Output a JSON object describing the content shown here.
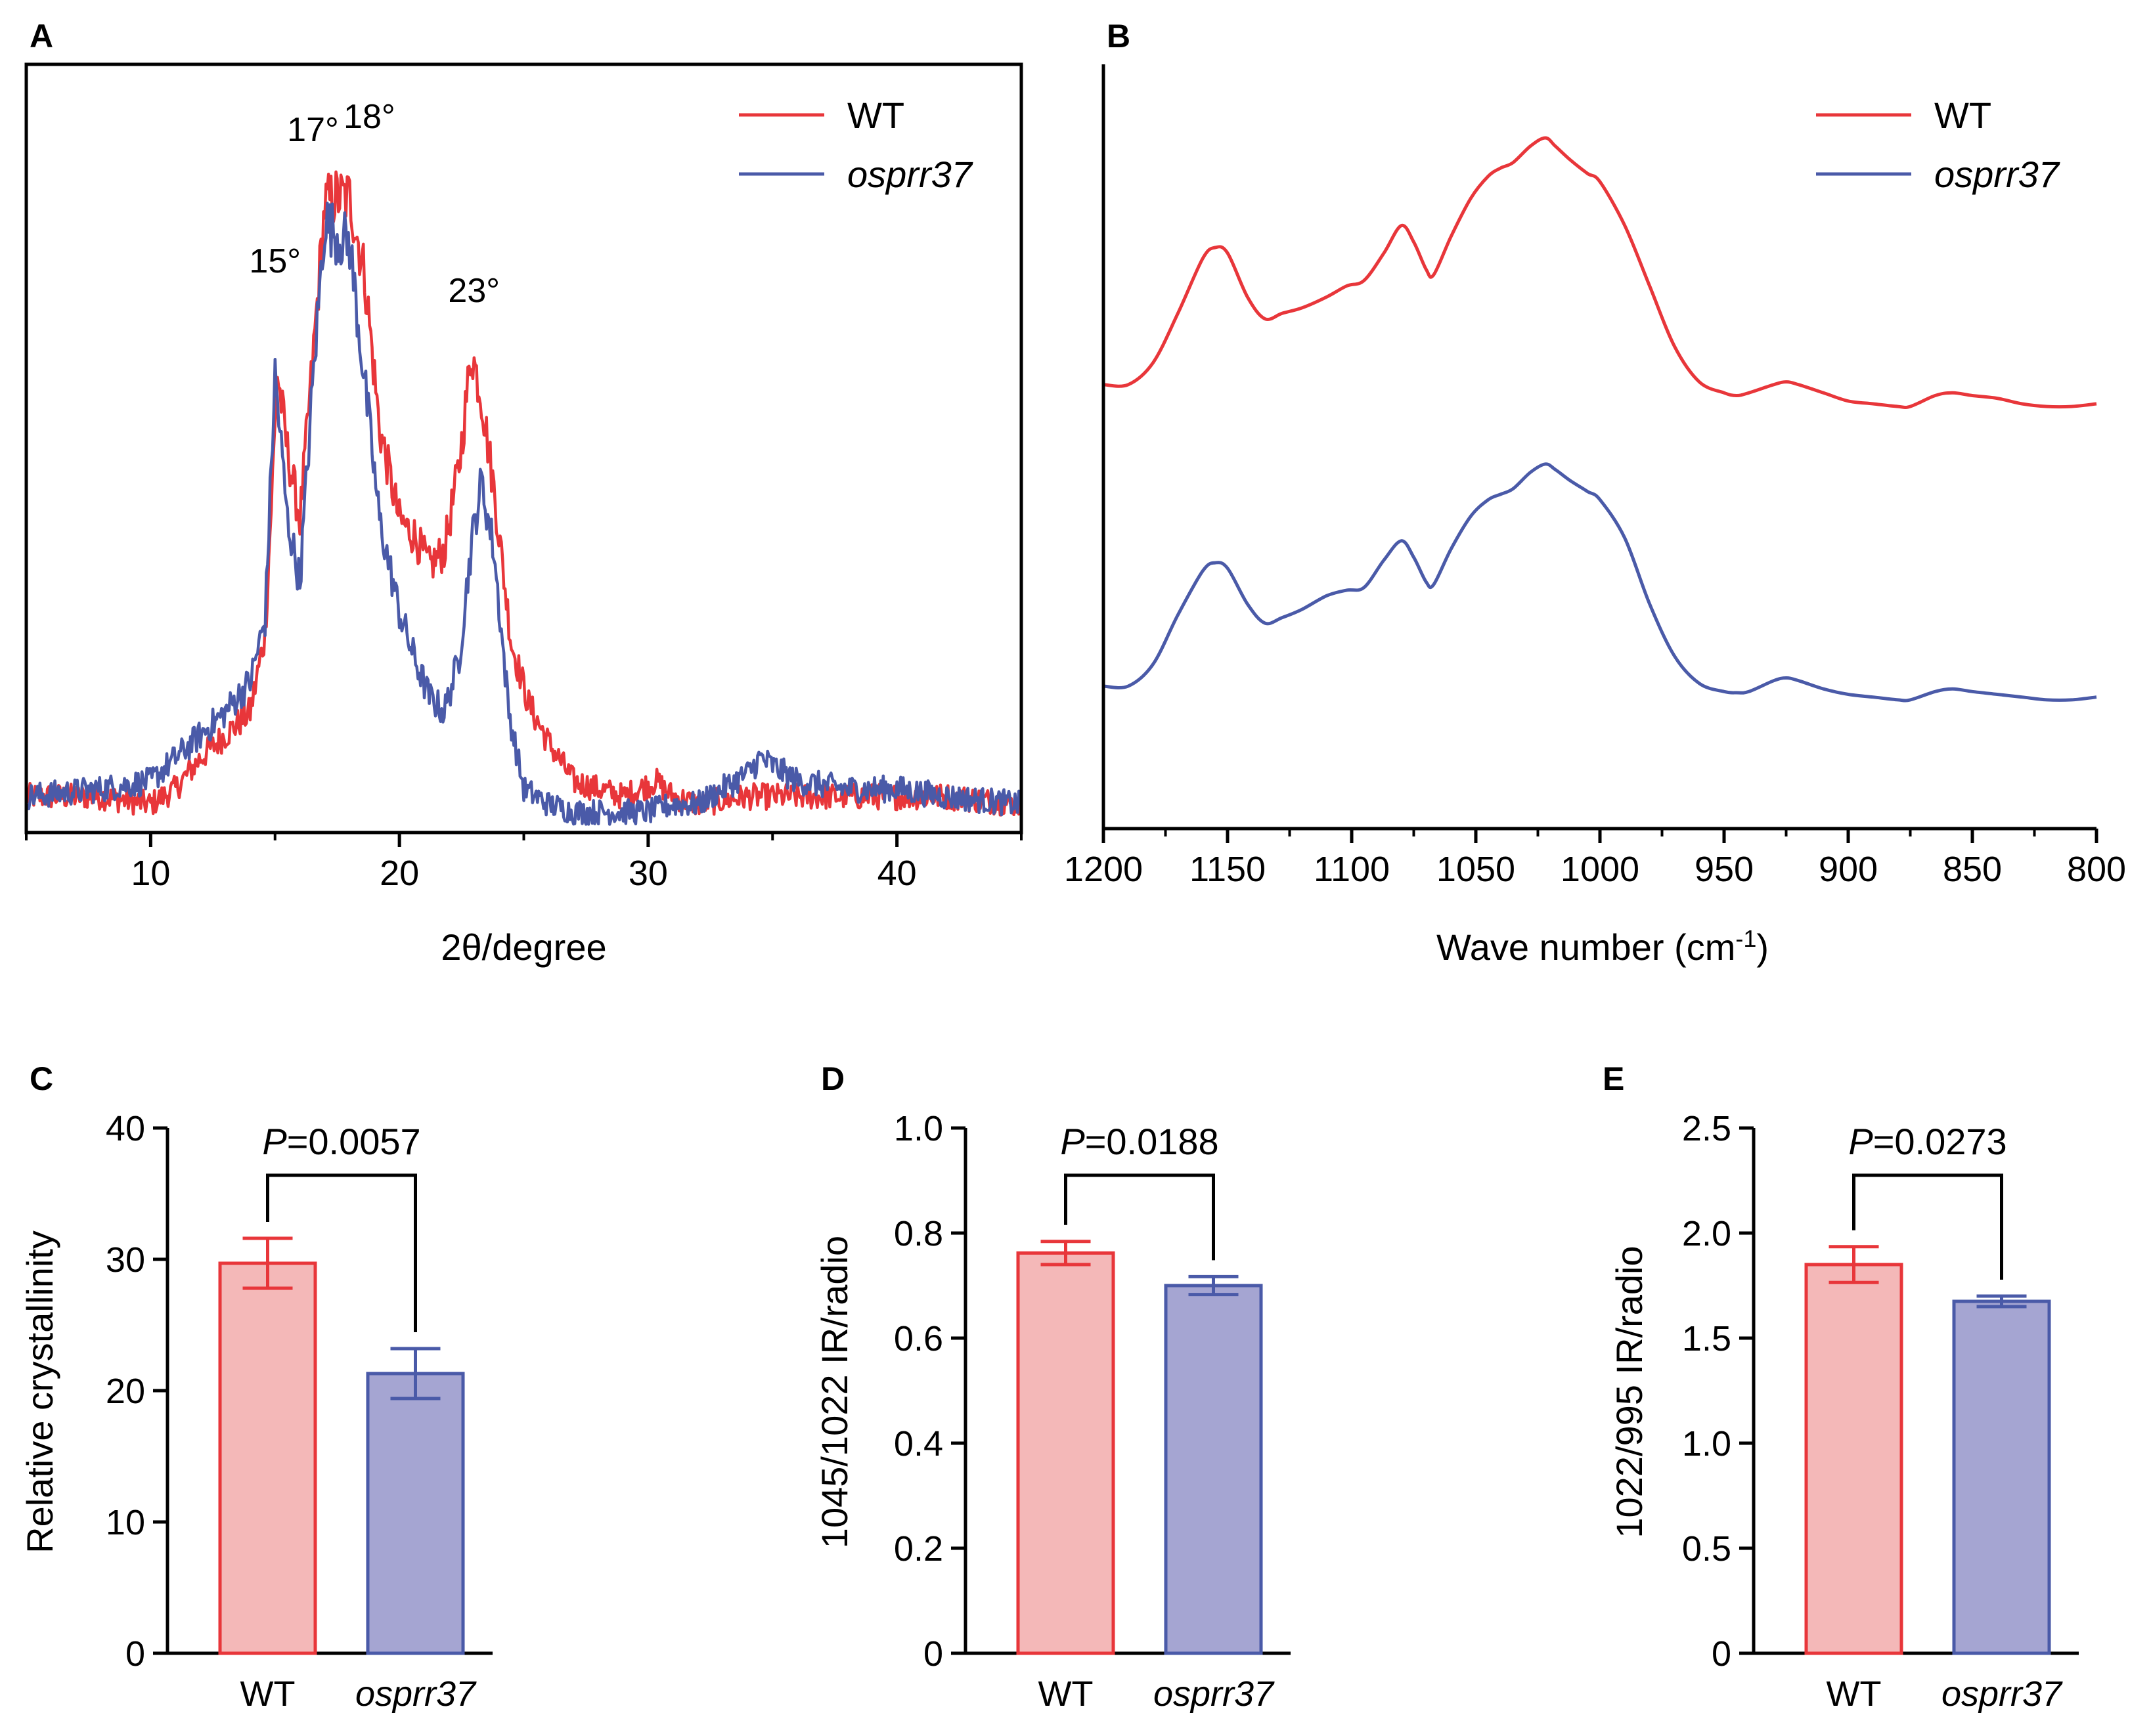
{
  "figure": {
    "colors": {
      "wt": "#e8363a",
      "mutant": "#4a5aa8",
      "wt_fill": "#f4b8b8",
      "mutant_fill": "#a5a5d2"
    }
  },
  "chart_data": [
    {
      "panel": "A",
      "type": "line",
      "xlabel": "2θ/degree",
      "ylabel": "",
      "xlim": [
        5,
        45
      ],
      "xticks": [
        10,
        20,
        30,
        40
      ],
      "xtick_labels": [
        "10",
        "20",
        "30",
        "40"
      ],
      "legend": [
        {
          "name": "WT",
          "italic": false
        },
        {
          "name": "osprr37",
          "italic": true
        }
      ],
      "legend_position": "top-right",
      "peak_labels": [
        {
          "text": "15°",
          "x": 15
        },
        {
          "text": "17°",
          "x": 17
        },
        {
          "text": "18°",
          "x": 18
        },
        {
          "text": "23°",
          "x": 23
        }
      ],
      "series": [
        {
          "name": "WT",
          "x": [
            5,
            8,
            10,
            11,
            12,
            13,
            14,
            14.6,
            15.1,
            15.5,
            16,
            16.5,
            17,
            17.4,
            18,
            18.6,
            19.2,
            20,
            20.6,
            21.2,
            21.8,
            22.4,
            22.9,
            23.3,
            23.8,
            24.5,
            25.2,
            26,
            27,
            28,
            29,
            30.3,
            31,
            32,
            34,
            36,
            38,
            40,
            42,
            45
          ],
          "y": [
            4,
            4,
            3,
            5,
            9,
            12,
            15,
            25,
            59,
            49,
            40,
            60,
            81,
            82,
            82,
            72,
            52,
            40,
            38,
            34,
            36,
            47,
            62,
            56,
            44,
            24,
            16,
            11,
            6,
            5,
            4,
            6,
            4,
            3,
            4,
            4,
            4,
            4,
            4,
            3
          ]
        },
        {
          "name": "osprr37",
          "x": [
            5,
            8,
            10,
            11,
            12,
            13,
            14,
            14.6,
            15,
            15.5,
            16,
            16.5,
            17,
            17.5,
            18,
            18.6,
            19.2,
            20,
            20.6,
            21.2,
            21.8,
            22.4,
            22.9,
            23.3,
            23.8,
            24.4,
            25,
            26,
            27,
            28,
            30,
            31,
            32,
            33,
            34,
            34.5,
            36,
            38,
            40,
            42,
            45
          ],
          "y": [
            4,
            5,
            6,
            9,
            12,
            15,
            19,
            27,
            59,
            40,
            32,
            57,
            79,
            77,
            76,
            58,
            40,
            28,
            22,
            17,
            15,
            22,
            37,
            45,
            36,
            15,
            5,
            3,
            2,
            2,
            2,
            3,
            3,
            5,
            7,
            9,
            6,
            5,
            5,
            4,
            3
          ]
        }
      ]
    },
    {
      "panel": "B",
      "type": "line",
      "xlabel": "Wave number (cm",
      "xlabel_sup": "-1",
      "xlabel_close": ")",
      "ylabel": "",
      "xlim": [
        1200,
        800
      ],
      "xticks": [
        1200,
        1150,
        1100,
        1050,
        1000,
        950,
        900,
        850,
        800
      ],
      "xtick_labels": [
        "1200",
        "1150",
        "1100",
        "1050",
        "1000",
        "950",
        "900",
        "850",
        "800"
      ],
      "legend": [
        {
          "name": "WT",
          "italic": false
        },
        {
          "name": "osprr37",
          "italic": true
        }
      ],
      "legend_position": "top-right",
      "series": [
        {
          "name": "WT",
          "x": [
            1200,
            1190,
            1180,
            1170,
            1160,
            1155,
            1150,
            1142,
            1135,
            1128,
            1120,
            1110,
            1102,
            1095,
            1087,
            1080,
            1075,
            1070,
            1067,
            1060,
            1052,
            1045,
            1040,
            1035,
            1028,
            1022,
            1018,
            1012,
            1005,
            1000,
            990,
            980,
            970,
            960,
            950,
            945,
            940,
            930,
            925,
            920,
            910,
            900,
            890,
            880,
            875,
            865,
            858,
            850,
            840,
            830,
            820,
            810,
            800
          ],
          "y": [
            0.55,
            0.55,
            0.59,
            0.68,
            0.78,
            0.8,
            0.79,
            0.71,
            0.67,
            0.68,
            0.69,
            0.71,
            0.73,
            0.74,
            0.79,
            0.84,
            0.81,
            0.76,
            0.75,
            0.82,
            0.89,
            0.93,
            0.945,
            0.955,
            0.985,
            1.0,
            0.985,
            0.96,
            0.935,
            0.92,
            0.84,
            0.73,
            0.62,
            0.555,
            0.535,
            0.53,
            0.535,
            0.55,
            0.555,
            0.55,
            0.535,
            0.52,
            0.515,
            0.51,
            0.51,
            0.53,
            0.535,
            0.53,
            0.525,
            0.515,
            0.51,
            0.51,
            0.515
          ]
        },
        {
          "name": "osprr37",
          "x": [
            1200,
            1190,
            1180,
            1170,
            1160,
            1155,
            1150,
            1142,
            1135,
            1128,
            1120,
            1110,
            1102,
            1095,
            1087,
            1080,
            1075,
            1070,
            1067,
            1060,
            1052,
            1045,
            1040,
            1035,
            1028,
            1022,
            1018,
            1012,
            1005,
            1000,
            990,
            980,
            970,
            960,
            950,
            945,
            940,
            930,
            925,
            920,
            910,
            900,
            890,
            880,
            875,
            865,
            858,
            850,
            840,
            830,
            820,
            810,
            800
          ],
          "y": [
            0.0,
            0.0,
            0.04,
            0.13,
            0.21,
            0.225,
            0.215,
            0.15,
            0.115,
            0.125,
            0.14,
            0.165,
            0.175,
            0.18,
            0.23,
            0.265,
            0.235,
            0.19,
            0.185,
            0.25,
            0.31,
            0.34,
            0.35,
            0.36,
            0.39,
            0.405,
            0.395,
            0.375,
            0.355,
            0.34,
            0.27,
            0.15,
            0.055,
            0.005,
            -0.01,
            -0.012,
            -0.01,
            0.01,
            0.015,
            0.01,
            -0.005,
            -0.015,
            -0.02,
            -0.025,
            -0.025,
            -0.01,
            -0.005,
            -0.01,
            -0.015,
            -0.02,
            -0.025,
            -0.025,
            -0.02
          ]
        }
      ]
    },
    {
      "panel": "C",
      "type": "bar",
      "ylabel": "Relative crystallinity",
      "ylim": [
        0,
        40
      ],
      "yticks": [
        0,
        10,
        20,
        30,
        40
      ],
      "ytick_labels": [
        "0",
        "10",
        "20",
        "30",
        "40"
      ],
      "categories": [
        "WT",
        "osprr37"
      ],
      "values": [
        29.7,
        21.3
      ],
      "errors": [
        1.9,
        1.9
      ],
      "p_label": "P",
      "p_value": "=0.0057"
    },
    {
      "panel": "D",
      "type": "bar",
      "ylabel": "1045/1022 IR/radio",
      "ylim": [
        0,
        1.0
      ],
      "yticks": [
        0,
        0.2,
        0.4,
        0.6,
        0.8,
        1.0
      ],
      "ytick_labels": [
        "0",
        "0.2",
        "0.4",
        "0.6",
        "0.8",
        "1.0"
      ],
      "categories": [
        "WT",
        "osprr37"
      ],
      "values": [
        0.762,
        0.7
      ],
      "errors": [
        0.022,
        0.017
      ],
      "p_label": "P",
      "p_value": "=0.0188"
    },
    {
      "panel": "E",
      "type": "bar",
      "ylabel": "1022/995 IR/radio",
      "ylim": [
        0,
        2.5
      ],
      "yticks": [
        0,
        0.5,
        1.0,
        1.5,
        2.0,
        2.5
      ],
      "ytick_labels": [
        "0",
        "0.5",
        "1.0",
        "1.5",
        "2.0",
        "2.5"
      ],
      "categories": [
        "WT",
        "osprr37"
      ],
      "values": [
        1.85,
        1.675
      ],
      "errors": [
        0.085,
        0.025
      ],
      "p_label": "P",
      "p_value": "=0.0273"
    }
  ]
}
